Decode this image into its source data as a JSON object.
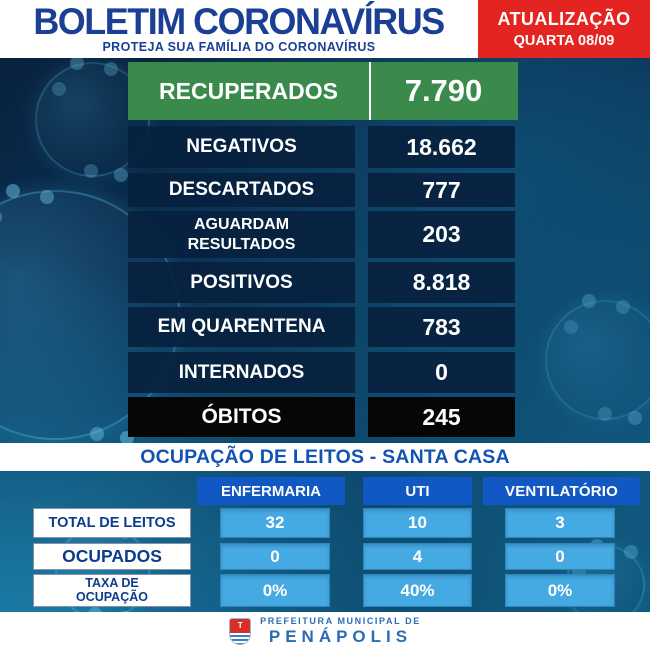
{
  "header": {
    "title": "BOLETIM CORONAVÍRUS",
    "subtitle": "PROTEJA SUA FAMÍLIA DO CORONAVÍRUS",
    "update_label": "ATUALIZAÇÃO",
    "update_date": "QUARTA 08/09"
  },
  "stats": [
    {
      "label": "RECUPERADOS",
      "value": "7.790",
      "style": "green"
    },
    {
      "label": "NEGATIVOS",
      "value": "18.662",
      "style": "navy"
    },
    {
      "label": "DESCARTADOS",
      "value": "777",
      "style": "navy"
    },
    {
      "label": "AGUARDAM RESULTADOS",
      "value": "203",
      "style": "navy"
    },
    {
      "label": "POSITIVOS",
      "value": "8.818",
      "style": "navy"
    },
    {
      "label": "EM QUARENTENA",
      "value": "783",
      "style": "navy"
    },
    {
      "label": "INTERNADOS",
      "value": "0",
      "style": "navy"
    },
    {
      "label": "ÓBITOS",
      "value": "245",
      "style": "black"
    }
  ],
  "beds": {
    "title": "OCUPAÇÃO DE LEITOS - SANTA CASA",
    "columns": [
      "ENFERMARIA",
      "UTI",
      "VENTILATÓRIO"
    ],
    "rows": [
      {
        "label": "TOTAL DE LEITOS",
        "values": [
          "32",
          "10",
          "3"
        ]
      },
      {
        "label": "OCUPADOS",
        "values": [
          "0",
          "4",
          "0"
        ]
      },
      {
        "label": "TAXA DE OCUPAÇÃO",
        "values": [
          "0%",
          "40%",
          "0%"
        ]
      }
    ]
  },
  "footer": {
    "org_line1": "PREFEITURA MUNICIPAL DE",
    "org_line2": "PENÁPOLIS",
    "crest_letter": "T"
  },
  "colors": {
    "brand_blue": "#1b3f94",
    "accent_red": "#e42420",
    "recovered_green": "#3a8a4c",
    "panel_navy": "#08213e",
    "deaths_black": "#060606",
    "table_header_blue": "#1158c4",
    "table_cell_blue": "#45a9e2",
    "banner_text_blue": "#1254b4"
  }
}
